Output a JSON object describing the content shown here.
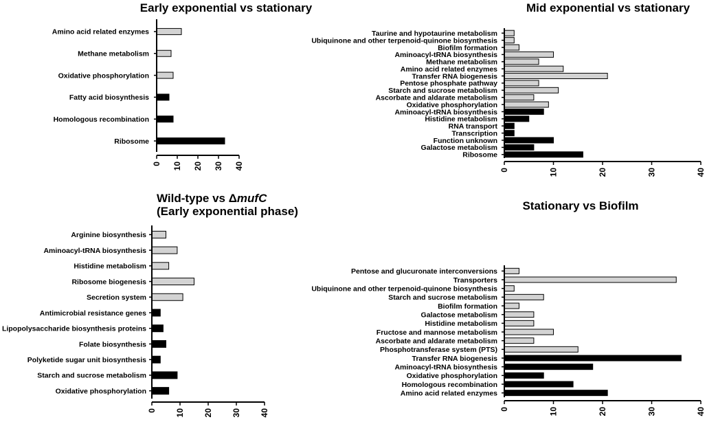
{
  "colors": {
    "upregulated_fill": "#d3d3d3",
    "downregulated_fill": "#000000",
    "stroke": "#000000"
  },
  "chart_data": [
    {
      "type": "bar",
      "orientation": "horizontal",
      "title": "Early exponential vs stationary",
      "categories": [
        "Amino acid related enzymes",
        "Methane metabolism",
        "Oxidative phosphorylation",
        "Fatty acid biosynthesis",
        "Homologous recombination",
        "Ribosome"
      ],
      "values": [
        12,
        7,
        8,
        6,
        8,
        33
      ],
      "fills": [
        "light",
        "light",
        "light",
        "dark",
        "dark",
        "dark"
      ],
      "xlim": [
        0,
        40
      ],
      "xticks": [
        "0",
        "10",
        "20",
        "30",
        "40"
      ]
    },
    {
      "type": "bar",
      "orientation": "horizontal",
      "title": "Mid exponential vs stationary",
      "categories": [
        "Taurine and hypotaurine metabolism",
        "Ubiquinone and other terpenoid-quinone biosynthesis",
        "Biofilm formation",
        "Aminoacyl-tRNA biosynthesis",
        "Methane metabolism",
        "Amino acid related enzymes",
        "Transfer RNA biogenesis",
        "Pentose phosphate pathway",
        "Starch and sucrose metabolism",
        "Ascorbate and aldarate metabolism",
        "Oxidative phosphorylation",
        "Aminoacyl-tRNA biosynthesis",
        "Histidine metabolism",
        "RNA transport",
        "Transcription",
        "Function unknown",
        "Galactose metabolism",
        "Ribosome"
      ],
      "values": [
        2,
        2,
        3,
        10,
        7,
        12,
        21,
        7,
        11,
        6,
        9,
        8,
        5,
        2,
        2,
        10,
        6,
        16
      ],
      "fills": [
        "light",
        "light",
        "light",
        "light",
        "light",
        "light",
        "light",
        "light",
        "light",
        "light",
        "light",
        "dark",
        "dark",
        "dark",
        "dark",
        "dark",
        "dark",
        "dark"
      ],
      "xlim": [
        0,
        40
      ],
      "xticks": [
        "0",
        "10",
        "20",
        "30",
        "40"
      ]
    },
    {
      "type": "bar",
      "orientation": "horizontal",
      "title_line1_prefix": "Wild-type vs Δ",
      "title_line1_italic": "mufC",
      "title_line2": "(Early exponential phase)",
      "categories": [
        "Arginine biosynthesis",
        "Aminoacyl-tRNA biosynthesis",
        "Histidine metabolism",
        "Ribosome biogenesis",
        "Secretion system",
        "Antimicrobial resistance genes",
        "Lipopolysaccharide biosynthesis proteins",
        "Folate biosynthesis",
        "Polyketide sugar unit biosynthesis",
        "Starch and sucrose metabolism",
        "Oxidative phosphorylation"
      ],
      "values": [
        5,
        9,
        6,
        15,
        11,
        3,
        4,
        5,
        3,
        9,
        6
      ],
      "fills": [
        "light",
        "light",
        "light",
        "light",
        "light",
        "dark",
        "dark",
        "dark",
        "dark",
        "dark",
        "dark"
      ],
      "xlim": [
        0,
        40
      ],
      "xticks": [
        "0",
        "10",
        "20",
        "30",
        "40"
      ]
    },
    {
      "type": "bar",
      "orientation": "horizontal",
      "title": "Stationary vs Biofilm",
      "categories": [
        "Pentose and glucuronate interconversions",
        "Transporters",
        "Ubiquinone and other terpenoid-quinone biosynthesis",
        "Starch and sucrose metabolism",
        "Biofilm formation",
        "Galactose metabolism",
        "Histidine metabolism",
        "Fructose and mannose metabolism",
        "Ascorbate and aldarate metabolism",
        "Phosphotransferase system (PTS)",
        "Transfer RNA biogenesis",
        "Aminoacyl-tRNA biosynthesis",
        "Oxidative phosphorylation",
        "Homologous recombination",
        "Amino acid related enzymes"
      ],
      "values": [
        3,
        35,
        2,
        8,
        3,
        6,
        6,
        10,
        6,
        15,
        36,
        18,
        8,
        14,
        21
      ],
      "fills": [
        "light",
        "light",
        "light",
        "light",
        "light",
        "light",
        "light",
        "light",
        "light",
        "light",
        "dark",
        "dark",
        "dark",
        "dark",
        "dark"
      ],
      "xlim": [
        0,
        40
      ],
      "xticks": [
        "0",
        "10",
        "20",
        "30",
        "40"
      ]
    }
  ]
}
